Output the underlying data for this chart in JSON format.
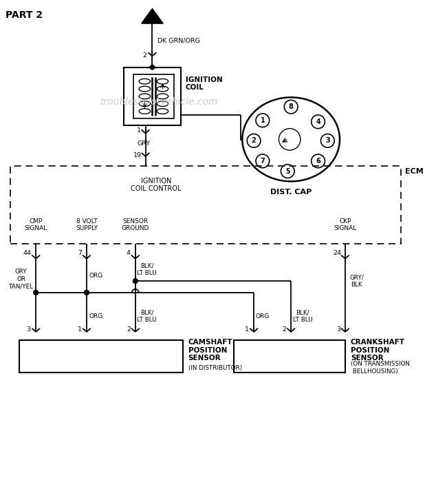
{
  "bg_color": "#ffffff",
  "line_color": "#000000",
  "title": "PART 2",
  "watermark": "troubleshootvehicle.com",
  "watermark_color": "#cccccc",
  "connector_A": "A",
  "wire_dk_grn_org": "DK GRN/ORG",
  "wire_gry": "GRY",
  "wire_org": "ORG",
  "wire_blk_lt_blu": "BLK/\nLT BLU",
  "wire_gry_blk": "GRY/\nBLK",
  "wire_gry_tan": "GRY\nOR\nTAN/YEL",
  "ignition_coil": "IGNITION\nCOIL",
  "dist_cap": "DIST. CAP",
  "ecm": "ECM",
  "ign_coil_ctrl": "IGNITION\nCOIL CONTROL",
  "cmp_signal": "CMP\nSIGNAL",
  "volt8_supply": "8 VOLT\nSUPPLY",
  "sensor_ground": "SENSOR\nGROUND",
  "ckp_signal": "CKP\nSIGNAL",
  "cam_sensor": "CAMSHAFT\nPOSITION\nSENSOR",
  "cam_sensor_sub": "(IN DISTRIBUTOR)",
  "ckp_sensor": "CRANKSHAFT\nPOSITION\nSENSOR",
  "ckp_sensor_sub": "(ON TRANSMISSION\n BELLHOUSING)"
}
